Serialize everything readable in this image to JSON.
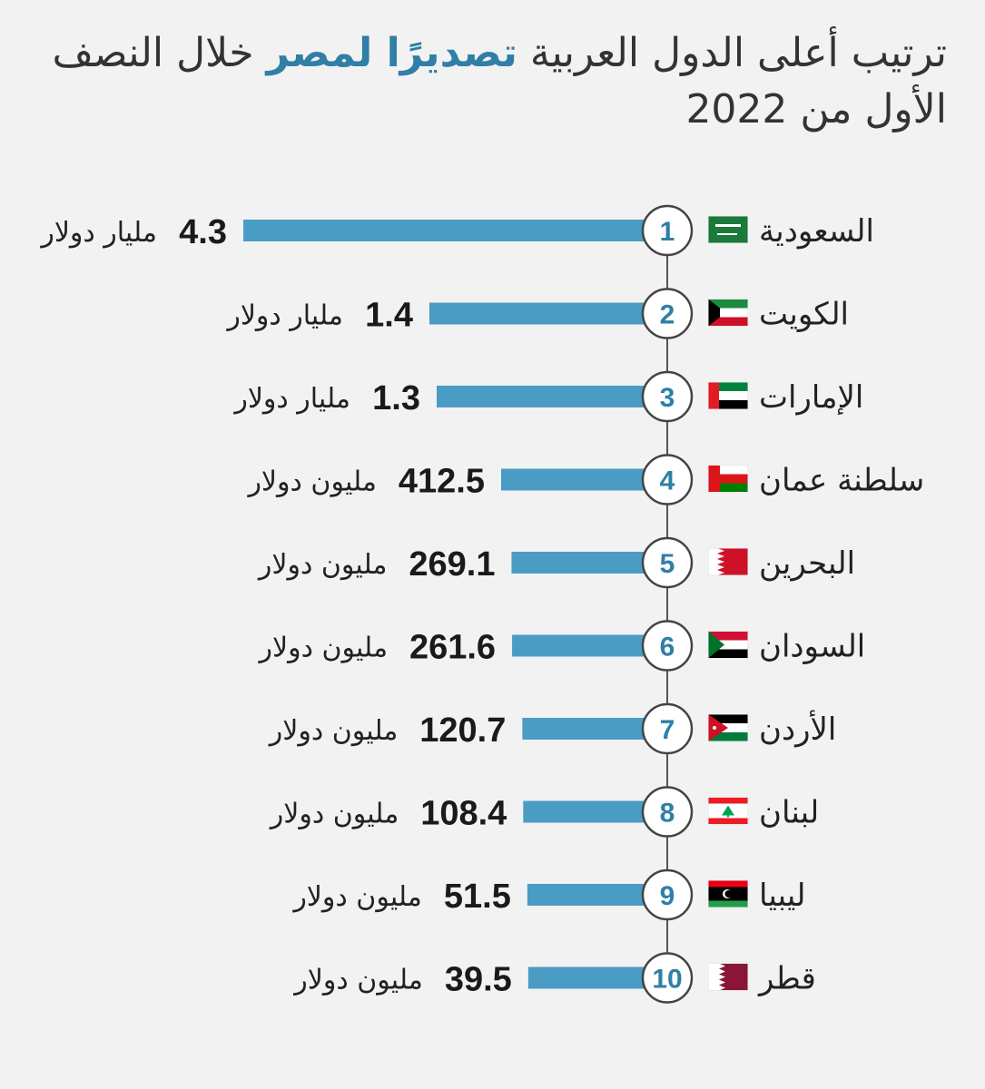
{
  "title": {
    "part1": "ترتيب أعلى الدول العربية",
    "highlight": "تصديرًا لمصر",
    "part2": "خلال النصف الأول من 2022"
  },
  "colors": {
    "bar": "#4a9cc4",
    "accent": "#2f7fa6",
    "timeline": "#555555"
  },
  "chart_data": {
    "type": "bar",
    "orientation": "horizontal",
    "title": "ترتيب أعلى الدول العربية تصديرًا لمصر خلال النصف الأول من 2022",
    "rows": [
      {
        "rank": "1",
        "country": "السعودية",
        "flag": "saudi-arabia",
        "value_text": "4.3",
        "unit": "مليار دولار",
        "value_usd_millions": 4300
      },
      {
        "rank": "2",
        "country": "الكويت",
        "flag": "kuwait",
        "value_text": "1.4",
        "unit": "مليار دولار",
        "value_usd_millions": 1400
      },
      {
        "rank": "3",
        "country": "الإمارات",
        "flag": "uae",
        "value_text": "1.3",
        "unit": "مليار دولار",
        "value_usd_millions": 1300
      },
      {
        "rank": "4",
        "country": "سلطنة عمان",
        "flag": "oman",
        "value_text": "412.5",
        "unit": "مليون دولار",
        "value_usd_millions": 412.5
      },
      {
        "rank": "5",
        "country": "البحرين",
        "flag": "bahrain",
        "value_text": "269.1",
        "unit": "مليون دولار",
        "value_usd_millions": 269.1
      },
      {
        "rank": "6",
        "country": "السودان",
        "flag": "sudan",
        "value_text": "261.6",
        "unit": "مليون دولار",
        "value_usd_millions": 261.6
      },
      {
        "rank": "7",
        "country": "الأردن",
        "flag": "jordan",
        "value_text": "120.7",
        "unit": "مليون دولار",
        "value_usd_millions": 120.7
      },
      {
        "rank": "8",
        "country": "لبنان",
        "flag": "lebanon",
        "value_text": "108.4",
        "unit": "مليون دولار",
        "value_usd_millions": 108.4
      },
      {
        "rank": "9",
        "country": "ليبيا",
        "flag": "libya",
        "value_text": "51.5",
        "unit": "مليون دولار",
        "value_usd_millions": 51.5
      },
      {
        "rank": "10",
        "country": "قطر",
        "flag": "qatar",
        "value_text": "39.5",
        "unit": "مليون دولار",
        "value_usd_millions": 39.5
      }
    ]
  }
}
